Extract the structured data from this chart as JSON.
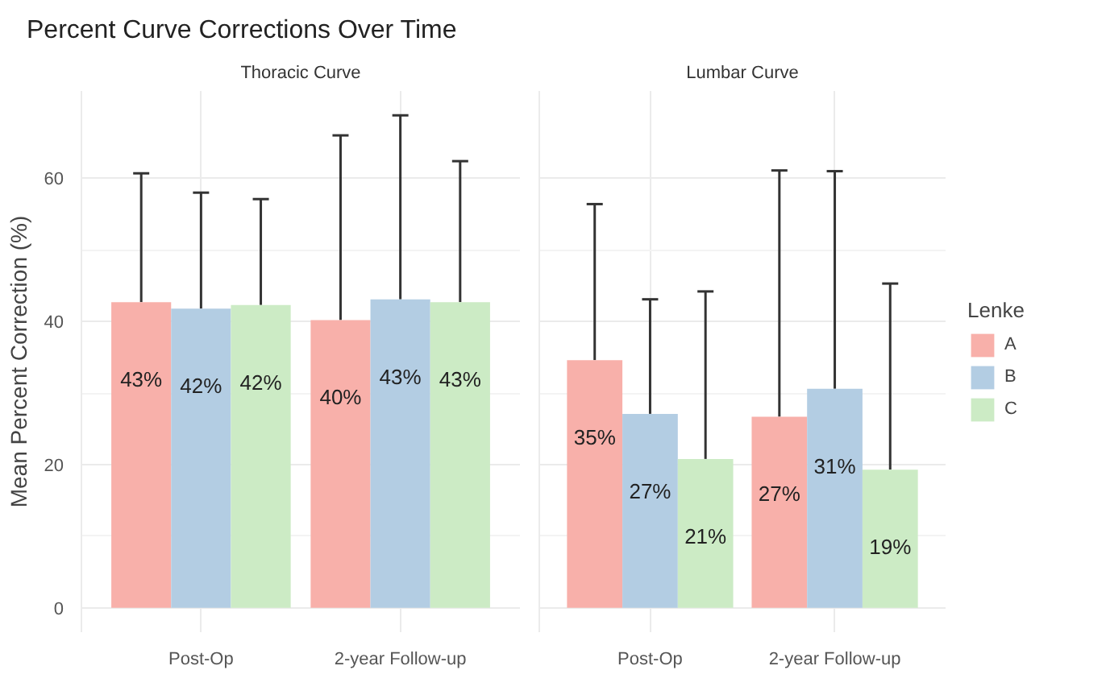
{
  "chart_data": [
    {
      "type": "bar",
      "title": "Percent Curve Corrections Over Time",
      "subtitle": "Thoracic Curve",
      "ylabel": "Mean Percent Correction (%)",
      "legend_title": "Lenke",
      "legend": "right",
      "categories": [
        "Post-Op",
        "2-year Follow-up"
      ],
      "ylim": [
        -3.4,
        72.2
      ],
      "yticks": [
        0,
        20,
        40,
        60
      ],
      "grid": true,
      "series": [
        {
          "name": "A",
          "color": "#f8b0aa",
          "values": [
            42.7,
            40.2
          ],
          "errors": [
            [
              42.7,
              60.7
            ],
            [
              40.2,
              66.0
            ]
          ],
          "value_labels": [
            "43%",
            "40%"
          ]
        },
        {
          "name": "B",
          "color": "#b3cde3",
          "values": [
            41.8,
            43.1
          ],
          "errors": [
            [
              41.8,
              58.0
            ],
            [
              43.1,
              68.8
            ]
          ],
          "value_labels": [
            "42%",
            "43%"
          ]
        },
        {
          "name": "C",
          "color": "#ccebc5",
          "values": [
            42.3,
            42.7
          ],
          "errors": [
            [
              42.3,
              57.1
            ],
            [
              42.7,
              62.4
            ]
          ],
          "value_labels": [
            "42%",
            "43%"
          ]
        }
      ]
    },
    {
      "type": "bar",
      "subtitle": "Lumbar Curve",
      "tick_labels": "x",
      "categories": [
        "Post-Op",
        "2-year Follow-up"
      ],
      "ylim": [
        -3.4,
        72.2
      ],
      "yticks": [
        0,
        20,
        40,
        60
      ],
      "grid": true,
      "series": [
        {
          "color": "#f8b0aa",
          "values": [
            34.6,
            26.7
          ],
          "errors": [
            [
              34.6,
              56.4
            ],
            [
              26.7,
              61.1
            ]
          ],
          "value_labels": [
            "35%",
            "27%"
          ]
        },
        {
          "color": "#b3cde3",
          "values": [
            27.1,
            30.6
          ],
          "errors": [
            [
              27.1,
              43.1
            ],
            [
              30.6,
              61.0
            ]
          ],
          "value_labels": [
            "27%",
            "31%"
          ]
        },
        {
          "color": "#ccebc5",
          "values": [
            20.8,
            19.3
          ],
          "errors": [
            [
              20.8,
              44.2
            ],
            [
              19.3,
              45.3
            ]
          ],
          "value_labels": [
            "21%",
            "19%"
          ]
        }
      ]
    }
  ]
}
